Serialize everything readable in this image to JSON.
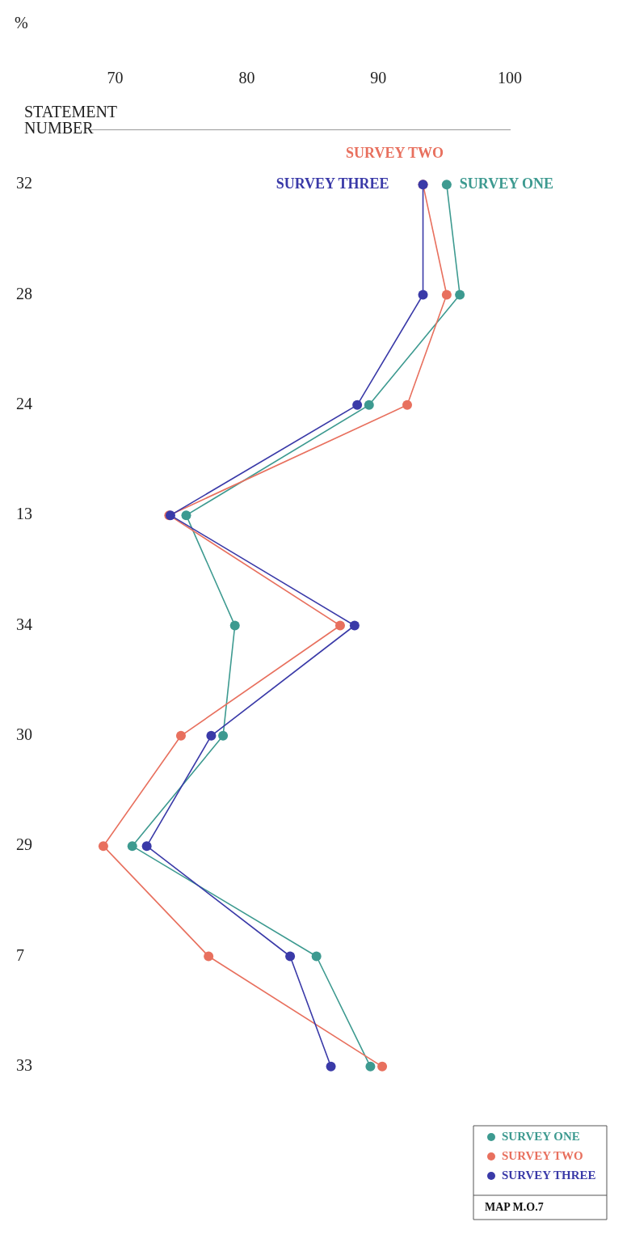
{
  "chart_data": {
    "type": "line",
    "xlabel": "%",
    "ylabel": "STATEMENT NUMBER",
    "categories": [
      "32",
      "28",
      "24",
      "13",
      "34",
      "30",
      "29",
      "7",
      "33"
    ],
    "orientation": "horizontal",
    "xlim": [
      68,
      100
    ],
    "xticks": [
      70,
      80,
      90,
      100
    ],
    "series": [
      {
        "name": "SURVEY ONE",
        "color": "#3d9a90",
        "values": [
          95.2,
          96.2,
          89.3,
          75.4,
          79.1,
          78.2,
          71.3,
          85.3,
          89.4
        ]
      },
      {
        "name": "SURVEY TWO",
        "color": "#e8705e",
        "values": [
          93.4,
          95.2,
          92.2,
          74.1,
          87.1,
          75.0,
          69.1,
          77.1,
          90.3
        ]
      },
      {
        "name": "SURVEY THREE",
        "color": "#3a3aa8",
        "values": [
          93.4,
          93.4,
          88.4,
          74.2,
          88.2,
          77.3,
          72.4,
          83.3,
          86.4
        ]
      }
    ],
    "annotations": [
      "MAP M.O.7"
    ],
    "legend": "bottom right",
    "grid": false,
    "marker": "circle",
    "line_style": "solid"
  }
}
